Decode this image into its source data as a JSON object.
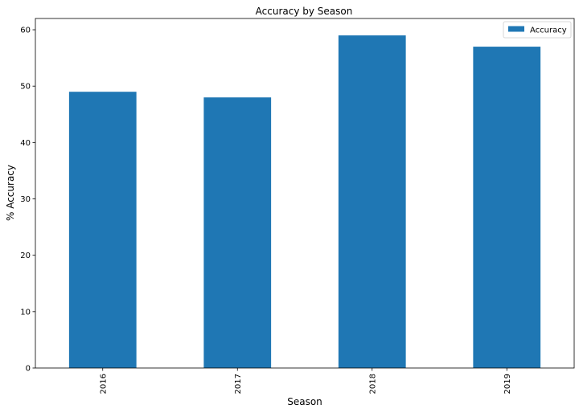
{
  "chart_data": {
    "type": "bar",
    "title": "Accuracy by Season",
    "xlabel": "Season",
    "ylabel": "% Accuracy",
    "categories": [
      "2016",
      "2017",
      "2018",
      "2019"
    ],
    "series": [
      {
        "name": "Accuracy",
        "values": [
          49,
          48,
          59,
          57
        ],
        "color": "#1f77b4"
      }
    ],
    "ylim": [
      0,
      62
    ],
    "yticks": [
      0,
      10,
      20,
      30,
      40,
      50,
      60
    ],
    "grid": false,
    "legend": "top-right"
  }
}
